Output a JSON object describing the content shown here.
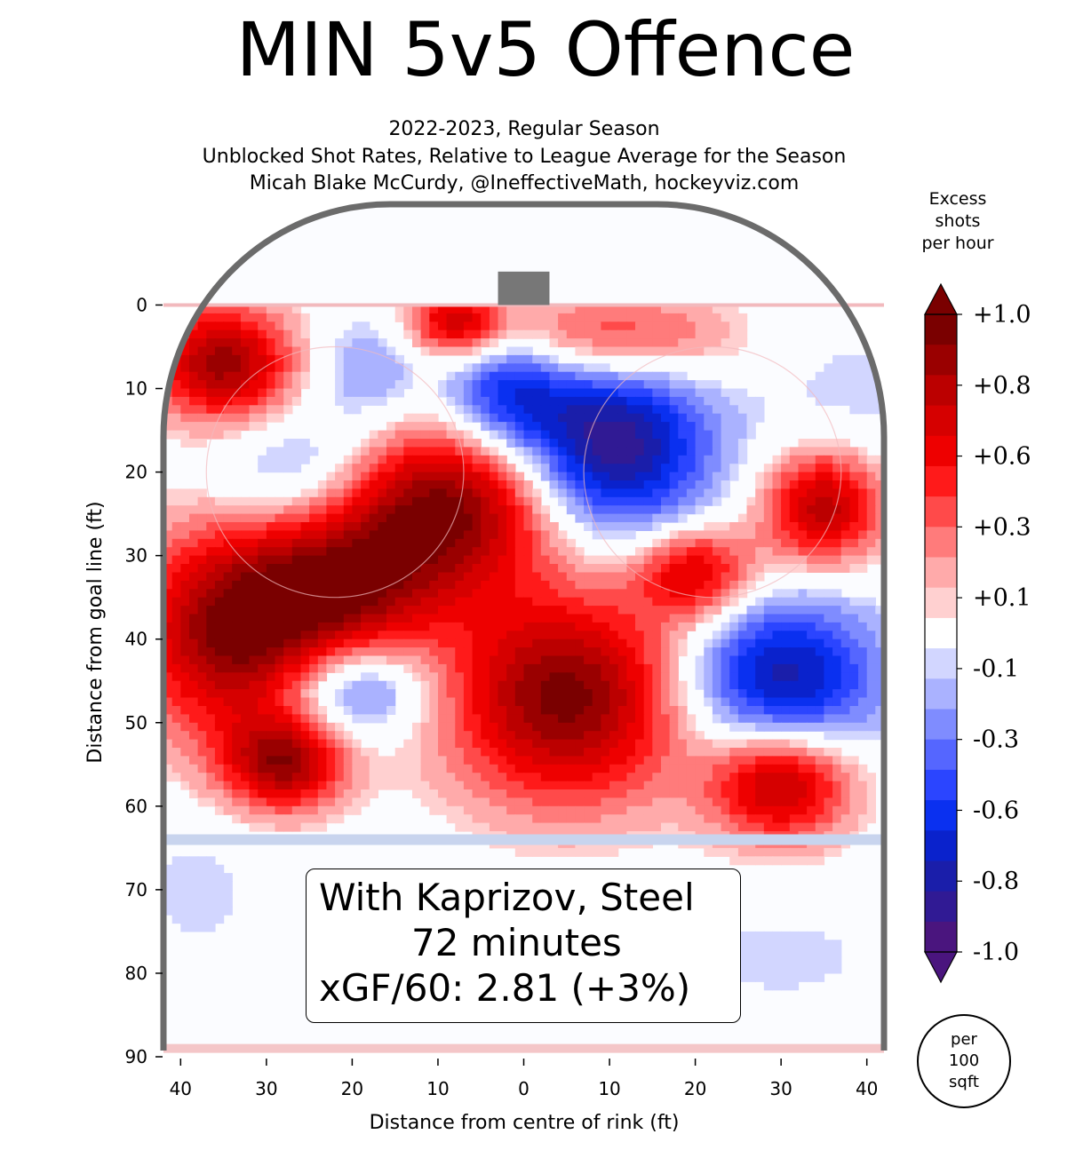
{
  "title": "MIN 5v5 Offence",
  "subtitle_lines": [
    "2022-2023, Regular Season",
    "Unblocked Shot Rates, Relative to League Average for the Season",
    "Micah Blake McCurdy, @IneffectiveMath, hockeyviz.com"
  ],
  "info": {
    "line1": "With Kaprizov, Steel",
    "line2": "72 minutes",
    "line3": "xGF/60: 2.81 (+3%)"
  },
  "colorbar": {
    "label_lines": [
      "Excess",
      "shots",
      "per hour"
    ],
    "tick_labels": [
      "+1.0",
      "+0.8",
      "+0.6",
      "+0.3",
      "+0.1",
      "-0.1",
      "-0.3",
      "-0.6",
      "-0.8",
      "-1.0"
    ],
    "unit_lines": [
      "per",
      "100",
      "sqft"
    ],
    "colors_top_to_bottom": [
      "#7a0000",
      "#9a0000",
      "#bb0000",
      "#d60000",
      "#ee0000",
      "#ff1a1a",
      "#ff4a4a",
      "#ff7b7b",
      "#ffaaaa",
      "#ffd0d0",
      "#ffffff",
      "#d2d6ff",
      "#aab2ff",
      "#7f8cff",
      "#5566ff",
      "#2b45ff",
      "#0a30f0",
      "#0a22cc",
      "#1a1eaa",
      "#301a94",
      "#4a157e"
    ]
  },
  "chart_data": {
    "type": "heatmap",
    "title": "MIN 5v5 Offence",
    "xlabel": "Distance from centre of rink (ft)",
    "ylabel": "Distance from goal line (ft)",
    "xlim": [
      -42,
      42
    ],
    "ylim": [
      90,
      -11
    ],
    "xticks": [
      40,
      30,
      20,
      10,
      0,
      10,
      20,
      30,
      40
    ],
    "yticks": [
      0,
      10,
      20,
      30,
      40,
      50,
      60,
      70,
      80,
      90
    ],
    "hotspots": [
      {
        "x": -35,
        "y": 7,
        "v": 0.9,
        "sx": 6,
        "sy": 5
      },
      {
        "x": -8,
        "y": 2,
        "v": 0.7,
        "sx": 4,
        "sy": 3
      },
      {
        "x": 10,
        "y": 4,
        "v": 0.6,
        "sx": 10,
        "sy": 4
      },
      {
        "x": -2,
        "y": 10,
        "v": -0.6,
        "sx": 5,
        "sy": 5
      },
      {
        "x": 10,
        "y": 17,
        "v": -1.0,
        "sx": 8,
        "sy": 8
      },
      {
        "x": 35,
        "y": 24,
        "v": 0.85,
        "sx": 5,
        "sy": 5
      },
      {
        "x": -9,
        "y": 24,
        "v": 1.0,
        "sx": 10,
        "sy": 7
      },
      {
        "x": -33,
        "y": 39,
        "v": 1.0,
        "sx": 9,
        "sy": 9
      },
      {
        "x": -20,
        "y": 34,
        "v": 0.6,
        "sx": 8,
        "sy": 6
      },
      {
        "x": 20,
        "y": 32,
        "v": 0.7,
        "sx": 5,
        "sy": 4
      },
      {
        "x": 30,
        "y": 45,
        "v": -0.85,
        "sx": 8,
        "sy": 7
      },
      {
        "x": -20,
        "y": 46,
        "v": -0.6,
        "sx": 6,
        "sy": 4
      },
      {
        "x": -26,
        "y": 20,
        "v": -0.4,
        "sx": 7,
        "sy": 5
      },
      {
        "x": -18,
        "y": 8,
        "v": -0.3,
        "sx": 5,
        "sy": 5
      },
      {
        "x": -28,
        "y": 55,
        "v": 0.8,
        "sx": 5,
        "sy": 4
      },
      {
        "x": 5,
        "y": 47,
        "v": 1.0,
        "sx": 10,
        "sy": 9
      },
      {
        "x": 30,
        "y": 57,
        "v": 0.9,
        "sx": 6,
        "sy": 5
      },
      {
        "x": 38,
        "y": 12,
        "v": -0.15,
        "sx": 8,
        "sy": 8
      },
      {
        "x": -38,
        "y": 70,
        "v": -0.15,
        "sx": 5,
        "sy": 6
      },
      {
        "x": 30,
        "y": 78,
        "v": -0.15,
        "sx": 8,
        "sy": 4
      }
    ],
    "levels": [
      -1.0,
      -0.9,
      -0.8,
      -0.7,
      -0.6,
      -0.5,
      -0.4,
      -0.3,
      -0.2,
      -0.1,
      0.1,
      0.2,
      0.3,
      0.4,
      0.5,
      0.6,
      0.7,
      0.8,
      0.9,
      1.0
    ]
  }
}
